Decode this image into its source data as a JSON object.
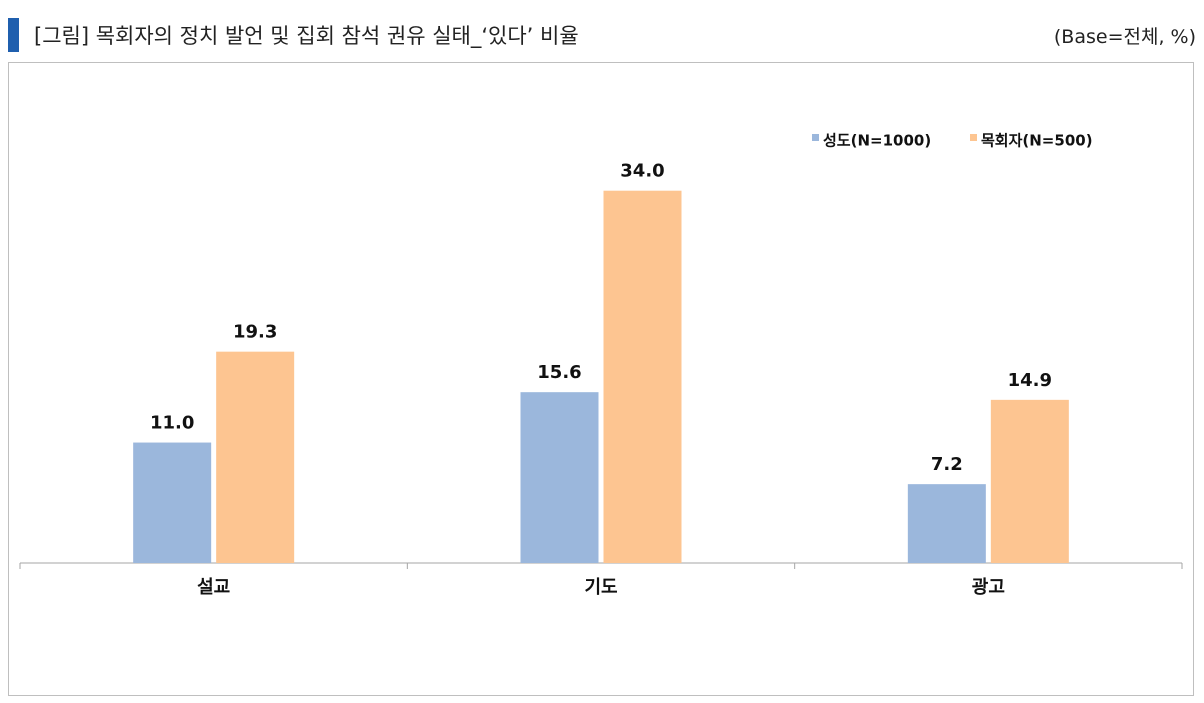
{
  "header": {
    "title": "[그림] 목회자의 정치 발언 및 집회 참석 권유 실태_‘있다’ 비율",
    "base_note": "(Base=전체, %)"
  },
  "chart_data": {
    "type": "bar",
    "categories": [
      "설교",
      "기도",
      "광고"
    ],
    "series": [
      {
        "name": "성도(N=1000)",
        "values": [
          11.0,
          15.6,
          7.2
        ],
        "color": "#9bb7dc"
      },
      {
        "name": "목회자(N=500)",
        "values": [
          19.3,
          34.0,
          14.9
        ],
        "color": "#fdc591"
      }
    ],
    "ylim": [
      0,
      40
    ],
    "grid": false,
    "legend_position": "top-right",
    "value_labels": true
  }
}
